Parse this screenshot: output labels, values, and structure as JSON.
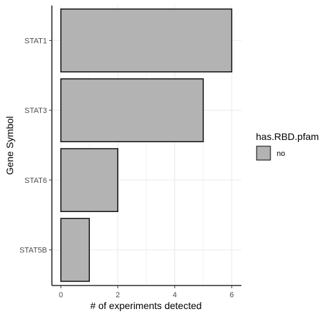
{
  "chart_data": {
    "type": "bar",
    "orientation": "horizontal",
    "categories": [
      "STAT1",
      "STAT3",
      "STAT6",
      "STAT5B"
    ],
    "values": [
      6,
      5,
      2,
      1
    ],
    "series": [
      {
        "name": "no",
        "values": [
          6,
          5,
          2,
          1
        ]
      }
    ],
    "xlabel": "# of experiments detected",
    "ylabel": "Gene Symbol",
    "xlim": [
      0,
      6
    ],
    "xticks": [
      "0",
      "2",
      "4",
      "6"
    ],
    "grid": true,
    "legend": {
      "title": "has.RBD.pfam",
      "entries": [
        "no"
      ],
      "position": "right"
    },
    "colors": {
      "bar_fill": "#b3b3b3",
      "bar_stroke": "#000000",
      "grid": "#ebebeb",
      "axis": "#000000"
    }
  }
}
